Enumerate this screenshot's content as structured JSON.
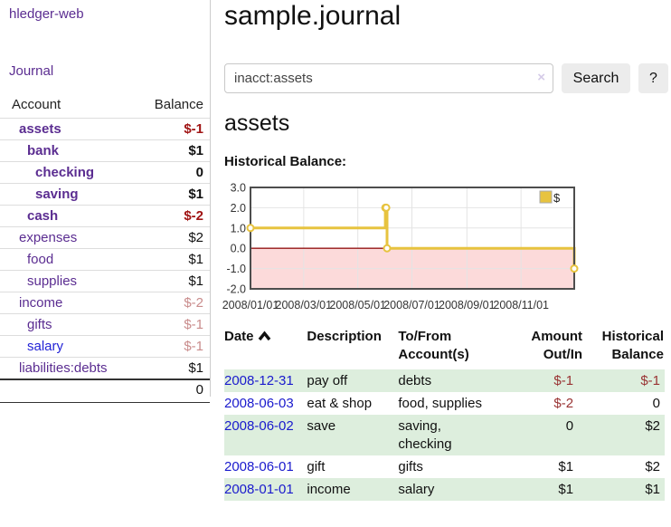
{
  "app": {
    "title": "hledger-web"
  },
  "sidebar": {
    "journal_link": "Journal",
    "accounts_table": {
      "account_header": "Account",
      "balance_header": "Balance",
      "rows": [
        {
          "account": "assets",
          "balance": "$-1",
          "indent": 0,
          "bold": true,
          "balance_color": "neg-strong",
          "link_color": "purple"
        },
        {
          "account": "bank",
          "balance": "$1",
          "indent": 1,
          "bold": true,
          "balance_color": "normal",
          "link_color": "purple"
        },
        {
          "account": "checking",
          "balance": "0",
          "indent": 2,
          "bold": true,
          "balance_color": "normal",
          "link_color": "purple"
        },
        {
          "account": "saving",
          "balance": "$1",
          "indent": 2,
          "bold": true,
          "balance_color": "normal",
          "link_color": "purple"
        },
        {
          "account": "cash",
          "balance": "$-2",
          "indent": 1,
          "bold": true,
          "balance_color": "neg-strong",
          "link_color": "purple"
        },
        {
          "account": "expenses",
          "balance": "$2",
          "indent": 0,
          "bold": false,
          "balance_color": "normal",
          "link_color": "purple"
        },
        {
          "account": "food",
          "balance": "$1",
          "indent": 1,
          "bold": false,
          "balance_color": "normal",
          "link_color": "purple"
        },
        {
          "account": "supplies",
          "balance": "$1",
          "indent": 1,
          "bold": false,
          "balance_color": "normal",
          "link_color": "purple"
        },
        {
          "account": "income",
          "balance": "$-2",
          "indent": 0,
          "bold": false,
          "balance_color": "neg-dim",
          "link_color": "purple"
        },
        {
          "account": "gifts",
          "balance": "$-1",
          "indent": 1,
          "bold": false,
          "balance_color": "neg-dim",
          "link_color": "purple"
        },
        {
          "account": "salary",
          "balance": "$-1",
          "indent": 1,
          "bold": false,
          "balance_color": "neg-dim",
          "link_color": "blue"
        },
        {
          "account": "liabilities:debts",
          "balance": "$1",
          "indent": 0,
          "bold": false,
          "balance_color": "normal",
          "link_color": "purple"
        }
      ],
      "total": "0"
    }
  },
  "main": {
    "title": "sample.journal",
    "search": {
      "value": "inacct:assets",
      "clear_icon": "×",
      "search_button": "Search",
      "help_button": "?"
    },
    "account_heading": "assets",
    "chart_label": "Historical Balance:"
  },
  "chart_data": {
    "type": "line",
    "title": "Historical Balance",
    "style": "steps-after",
    "series": [
      {
        "name": "$",
        "color": "#e7c33f",
        "points": [
          {
            "date": "2008-01-01",
            "value": 1
          },
          {
            "date": "2008-06-01",
            "value": 2
          },
          {
            "date": "2008-06-02",
            "value": 2
          },
          {
            "date": "2008-06-03",
            "value": 0
          },
          {
            "date": "2008-12-31",
            "value": -1
          }
        ]
      }
    ],
    "x_range": [
      "2008-01-01",
      "2008-12-31"
    ],
    "x_ticks": [
      "2008/01/01",
      "2008/03/01",
      "2008/05/01",
      "2008/07/01",
      "2008/09/01",
      "2008/11/01"
    ],
    "y_ticks": [
      3.0,
      2.0,
      1.0,
      0.0,
      -1.0,
      -2.0
    ],
    "ylim": [
      -2,
      3
    ],
    "grid": true,
    "legend": {
      "label": "$",
      "position": "top-right"
    },
    "colors": {
      "line": "#e7c33f",
      "marker_fill": "#ffffff",
      "negative_region": "#fcdada",
      "zero_line": "#941616",
      "grid_line": "#e4e4e4",
      "plot_border": "#4d4d4d"
    }
  },
  "register_table": {
    "headers": {
      "date": {
        "line1": "Date",
        "sort": "asc"
      },
      "description": {
        "line1": "Description"
      },
      "accounts": {
        "line1": "To/From",
        "line2": "Account(s)"
      },
      "amount": {
        "line1": "Amount",
        "line2": "Out/In"
      },
      "balance": {
        "line1": "Historical",
        "line2": "Balance"
      }
    },
    "rows": [
      {
        "date": "2008-12-31",
        "description": "pay off",
        "accounts": "debts",
        "amount": "$-1",
        "amount_neg": true,
        "balance": "$-1",
        "balance_neg": true
      },
      {
        "date": "2008-06-03",
        "description": "eat & shop",
        "accounts": "food, supplies",
        "amount": "$-2",
        "amount_neg": true,
        "balance": "0",
        "balance_neg": false
      },
      {
        "date": "2008-06-02",
        "description": "save",
        "accounts": "saving,\nchecking",
        "amount": "0",
        "amount_neg": false,
        "balance": "$2",
        "balance_neg": false
      },
      {
        "date": "2008-06-01",
        "description": "gift",
        "accounts": "gifts",
        "amount": "$1",
        "amount_neg": false,
        "balance": "$2",
        "balance_neg": false
      },
      {
        "date": "2008-01-01",
        "description": "income",
        "accounts": "salary",
        "amount": "$1",
        "amount_neg": false,
        "balance": "$1",
        "balance_neg": false
      }
    ]
  }
}
